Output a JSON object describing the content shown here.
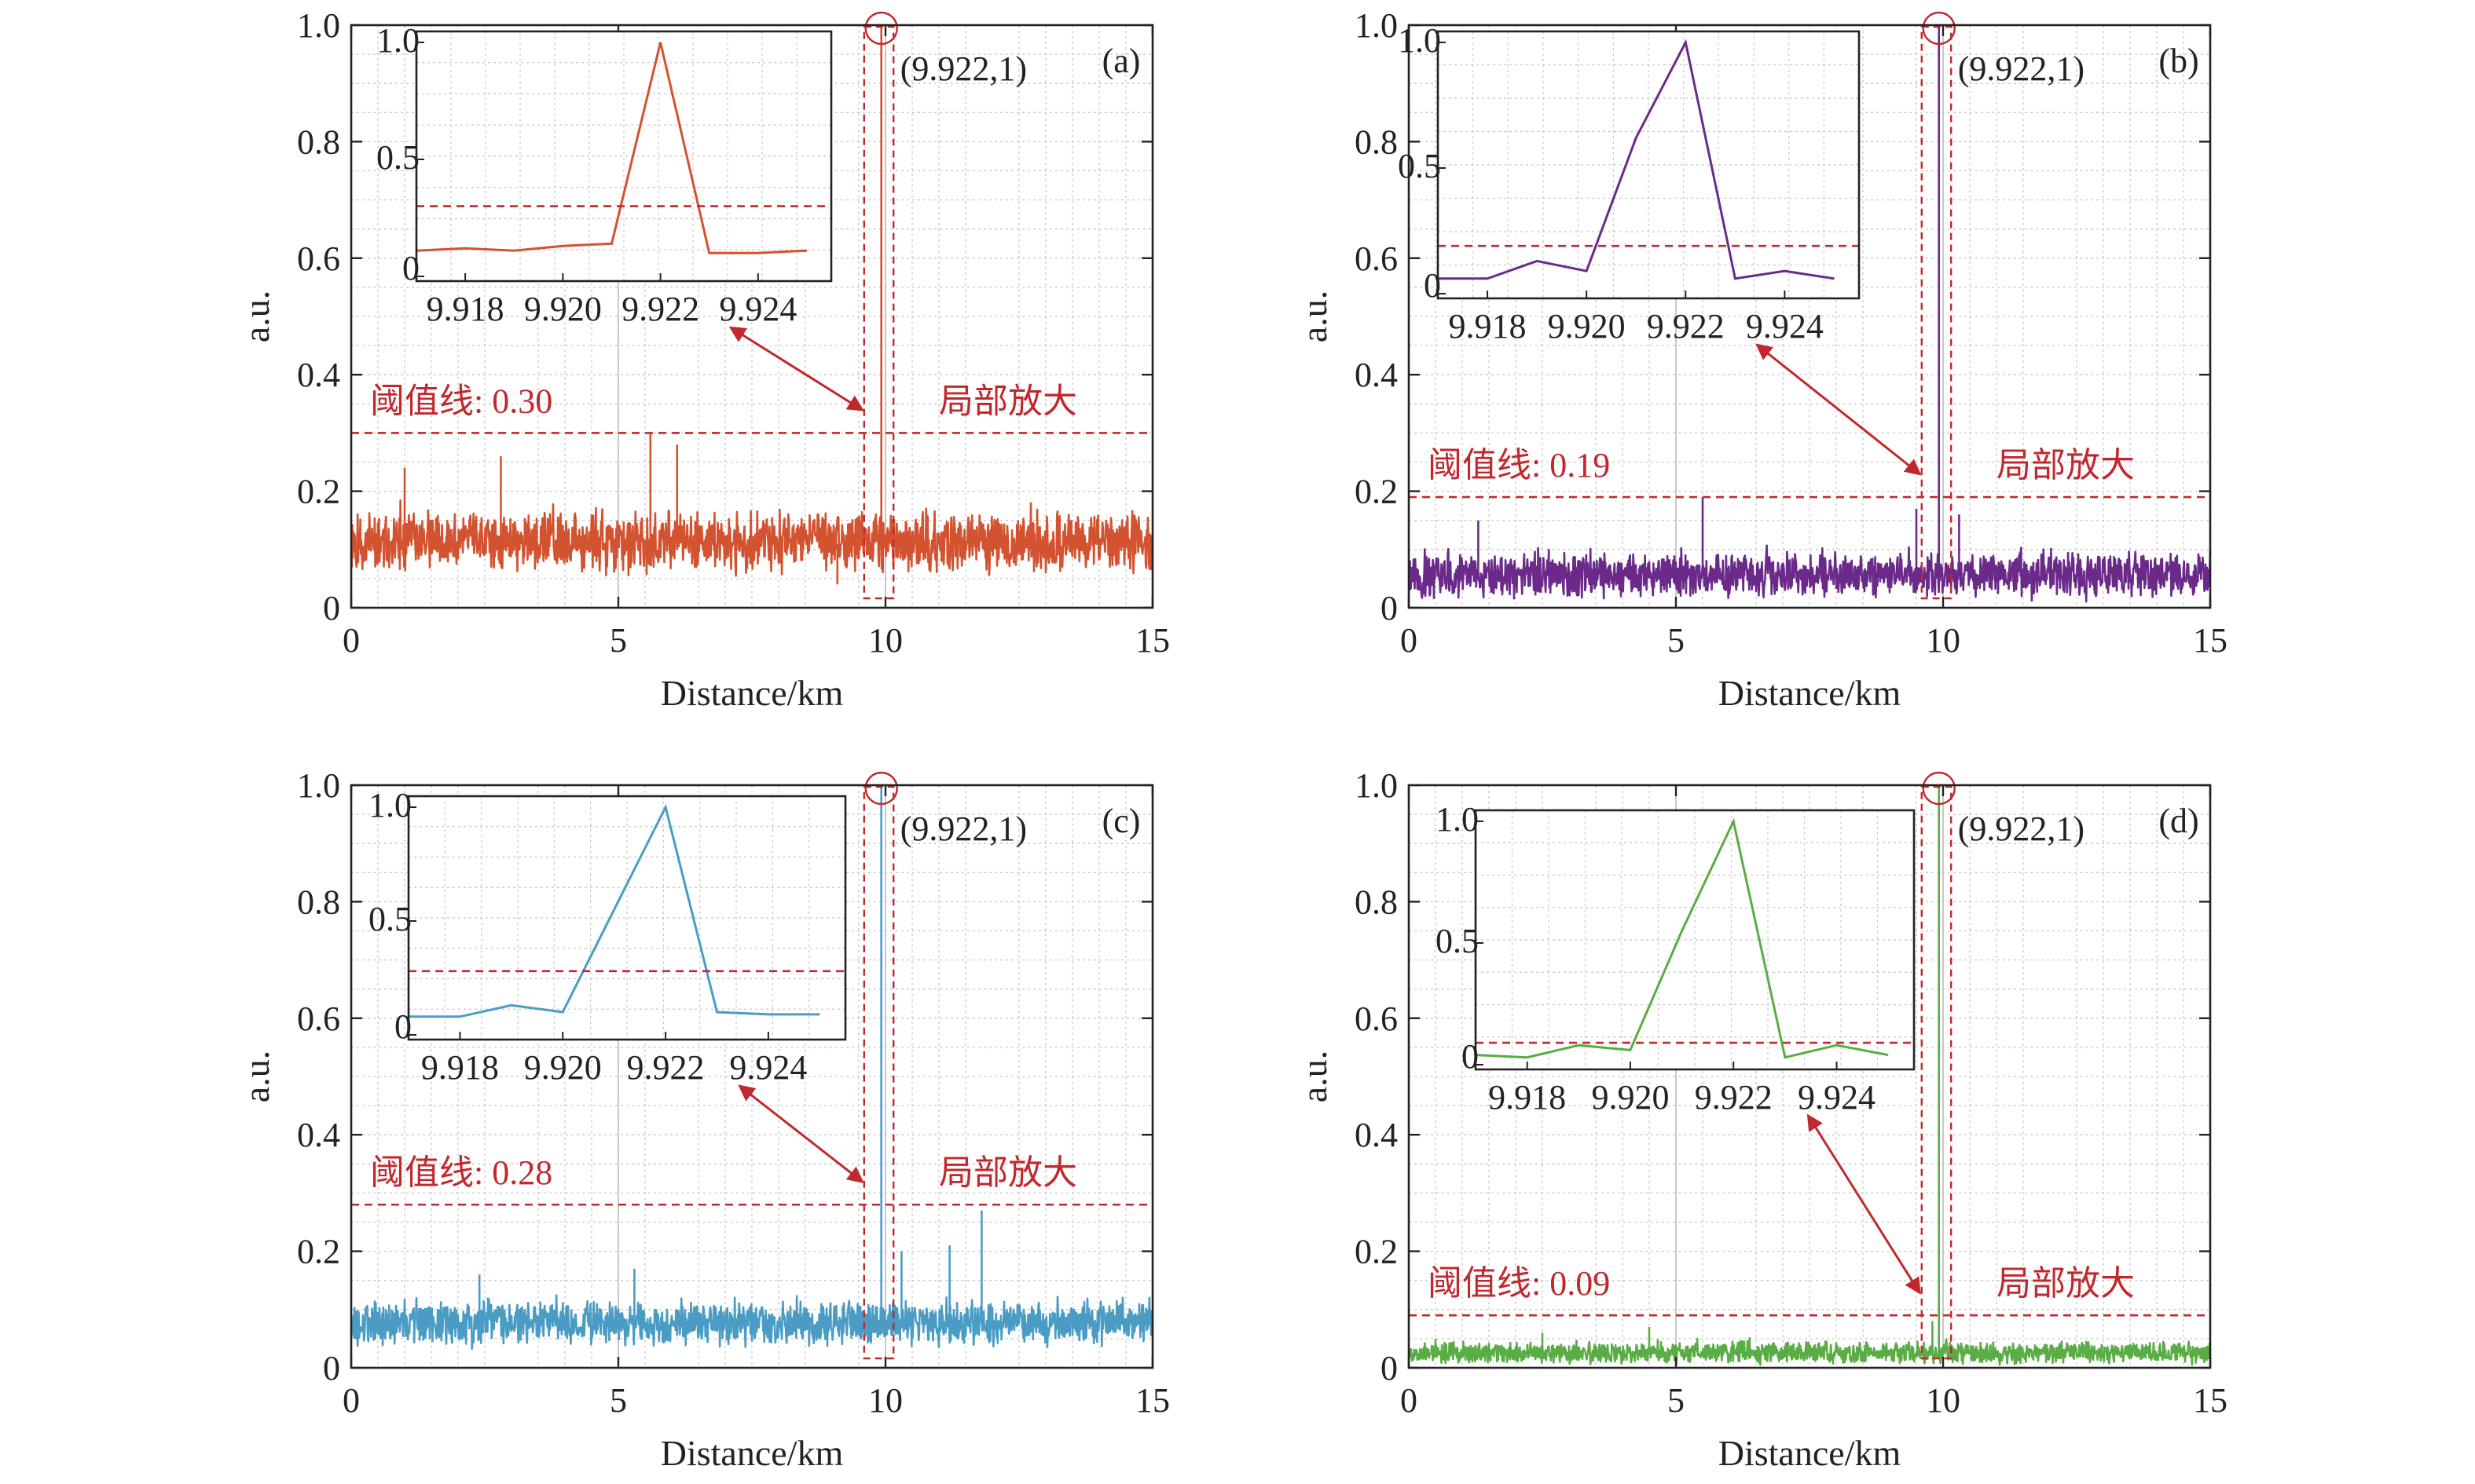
{
  "figure": {
    "colors": {
      "threshold": "#c0282d",
      "annotation": "#c0282d",
      "grid": "#c8c8c8",
      "axis": "#222222"
    }
  },
  "chart_data": [
    {
      "id": "a",
      "panel_label": "(a)",
      "type": "line",
      "xlabel": "Distance/km",
      "ylabel": "a.u.",
      "xlim": [
        0,
        15
      ],
      "ylim": [
        0,
        1.0
      ],
      "xticks": [
        "0",
        "5",
        "10",
        "15"
      ],
      "yticks": [
        "0",
        "0.2",
        "0.4",
        "0.6",
        "0.8",
        "1.0"
      ],
      "grid": true,
      "color": "#d35230",
      "noise": {
        "base": 0.11,
        "amp": 0.08,
        "seed": 11
      },
      "spikes": [
        {
          "x": 1.0,
          "y": 0.24
        },
        {
          "x": 2.8,
          "y": 0.26
        },
        {
          "x": 5.6,
          "y": 0.3
        },
        {
          "x": 6.1,
          "y": 0.28
        },
        {
          "x": 9.1,
          "y": 0.04
        }
      ],
      "peak": {
        "x": 9.922,
        "y": 1.0,
        "label": "(9.922,1)"
      },
      "threshold": {
        "value": 0.3,
        "label": "阈值线: 0.30"
      },
      "zoom_label": "局部放大",
      "inset": {
        "xlim": [
          9.917,
          9.9255
        ],
        "ylim": [
          0,
          1.0
        ],
        "xticks": [
          "9.918",
          "9.920",
          "9.922",
          "9.924"
        ],
        "yticks": [
          "0",
          "0.5",
          "1.0"
        ],
        "x": [
          9.917,
          9.918,
          9.919,
          9.92,
          9.921,
          9.922,
          9.923,
          9.924,
          9.925
        ],
        "y": [
          0.11,
          0.12,
          0.11,
          0.13,
          0.14,
          1.0,
          0.1,
          0.1,
          0.11
        ],
        "threshold": 0.3
      }
    },
    {
      "id": "b",
      "panel_label": "(b)",
      "type": "line",
      "xlabel": "Distance/km",
      "ylabel": "a.u.",
      "xlim": [
        0,
        15
      ],
      "ylim": [
        0,
        1.0
      ],
      "xticks": [
        "0",
        "5",
        "10",
        "15"
      ],
      "yticks": [
        "0",
        "0.2",
        "0.4",
        "0.6",
        "0.8",
        "1.0"
      ],
      "grid": true,
      "color": "#6b2a8a",
      "noise": {
        "base": 0.055,
        "amp": 0.06,
        "seed": 23
      },
      "spikes": [
        {
          "x": 1.3,
          "y": 0.15
        },
        {
          "x": 5.5,
          "y": 0.19
        },
        {
          "x": 9.5,
          "y": 0.17
        },
        {
          "x": 10.3,
          "y": 0.16
        }
      ],
      "peak": {
        "x": 9.922,
        "y": 1.0,
        "label": "(9.922,1)"
      },
      "threshold": {
        "value": 0.19,
        "label": "阈值线: 0.19"
      },
      "zoom_label": "局部放大",
      "inset": {
        "xlim": [
          9.917,
          9.9255
        ],
        "ylim": [
          0,
          1.0
        ],
        "xticks": [
          "9.918",
          "9.920",
          "9.922",
          "9.924"
        ],
        "yticks": [
          "0",
          "0.5",
          "1.0"
        ],
        "x": [
          9.917,
          9.918,
          9.919,
          9.92,
          9.921,
          9.922,
          9.923,
          9.924,
          9.925
        ],
        "y": [
          0.06,
          0.06,
          0.13,
          0.09,
          0.62,
          1.0,
          0.06,
          0.09,
          0.06
        ],
        "threshold": 0.19
      }
    },
    {
      "id": "c",
      "panel_label": "(c)",
      "type": "line",
      "xlabel": "Distance/km",
      "ylabel": "a.u.",
      "xlim": [
        0,
        15
      ],
      "ylim": [
        0,
        1.0
      ],
      "xticks": [
        "0",
        "5",
        "10",
        "15"
      ],
      "yticks": [
        "0",
        "0.2",
        "0.4",
        "0.6",
        "0.8",
        "1.0"
      ],
      "grid": true,
      "color": "#4a9cc4",
      "noise": {
        "base": 0.075,
        "amp": 0.06,
        "seed": 37
      },
      "spikes": [
        {
          "x": 2.4,
          "y": 0.16
        },
        {
          "x": 5.3,
          "y": 0.17
        },
        {
          "x": 10.3,
          "y": 0.2
        },
        {
          "x": 11.2,
          "y": 0.21
        },
        {
          "x": 11.8,
          "y": 0.27
        }
      ],
      "peak": {
        "x": 9.922,
        "y": 1.0,
        "label": "(9.922,1)"
      },
      "threshold": {
        "value": 0.28,
        "label": "阈值线: 0.28"
      },
      "zoom_label": "局部放大",
      "inset": {
        "xlim": [
          9.917,
          9.9255
        ],
        "ylim": [
          0,
          1.0
        ],
        "xticks": [
          "9.918",
          "9.920",
          "9.922",
          "9.924"
        ],
        "yticks": [
          "0",
          "0.5",
          "1.0"
        ],
        "x": [
          9.917,
          9.918,
          9.919,
          9.92,
          9.921,
          9.922,
          9.923,
          9.924,
          9.925
        ],
        "y": [
          0.08,
          0.08,
          0.13,
          0.1,
          0.55,
          1.0,
          0.1,
          0.09,
          0.09
        ],
        "threshold": 0.28
      }
    },
    {
      "id": "d",
      "panel_label": "(d)",
      "type": "line",
      "xlabel": "Distance/km",
      "ylabel": "a.u.",
      "xlim": [
        0,
        15
      ],
      "ylim": [
        0,
        1.0
      ],
      "xticks": [
        "0",
        "5",
        "10",
        "15"
      ],
      "yticks": [
        "0",
        "0.2",
        "0.4",
        "0.6",
        "0.8",
        "1.0"
      ],
      "grid": true,
      "color": "#5aac44",
      "noise": {
        "base": 0.025,
        "amp": 0.03,
        "seed": 53
      },
      "spikes": [
        {
          "x": 0.5,
          "y": 0.05
        },
        {
          "x": 2.5,
          "y": 0.06
        },
        {
          "x": 4.5,
          "y": 0.07
        },
        {
          "x": 9.8,
          "y": 0.08
        }
      ],
      "peak": {
        "x": 9.922,
        "y": 1.0,
        "label": "(9.922,1)"
      },
      "threshold": {
        "value": 0.09,
        "label": "阈值线: 0.09"
      },
      "zoom_label": "局部放大",
      "inset": {
        "xlim": [
          9.917,
          9.9255
        ],
        "ylim": [
          0,
          1.0
        ],
        "xticks": [
          "9.918",
          "9.920",
          "9.922",
          "9.924"
        ],
        "yticks": [
          "0",
          "0.5",
          "1.0"
        ],
        "x": [
          9.917,
          9.918,
          9.919,
          9.92,
          9.921,
          9.922,
          9.923,
          9.924,
          9.925
        ],
        "y": [
          0.04,
          0.03,
          0.08,
          0.06,
          0.55,
          1.0,
          0.03,
          0.08,
          0.04
        ],
        "threshold": 0.09
      }
    }
  ]
}
